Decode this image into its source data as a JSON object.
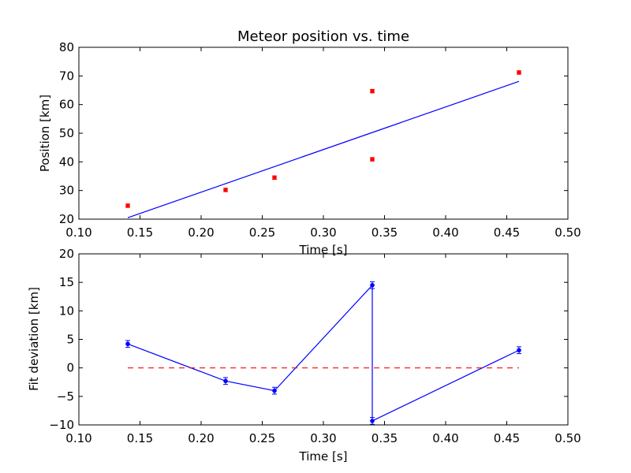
{
  "colors": {
    "data_points": "#ff0000",
    "fit_line": "#0000ff",
    "residual_line": "#0000ff",
    "zero_line": "#ff0000",
    "axes": "#000000",
    "background": "#ffffff"
  },
  "chart_data": [
    {
      "type": "scatter",
      "title": "Meteor position vs. time",
      "xlabel": "Time [s]",
      "ylabel": "Position [km]",
      "xlim": [
        0.1,
        0.5
      ],
      "ylim": [
        20,
        80
      ],
      "xticks": [
        "0.10",
        "0.15",
        "0.20",
        "0.25",
        "0.30",
        "0.35",
        "0.40",
        "0.45",
        "0.50"
      ],
      "yticks": [
        "20",
        "30",
        "40",
        "50",
        "60",
        "70",
        "80"
      ],
      "grid": false,
      "series": [
        {
          "kind": "errorbar-points",
          "color": "red",
          "x": [
            0.14,
            0.22,
            0.26,
            0.34,
            0.34,
            0.46
          ],
          "y": [
            24.7,
            30.2,
            34.5,
            64.7,
            40.9,
            71.2
          ],
          "yerr": [
            0.6,
            0.6,
            0.6,
            0.6,
            0.6,
            0.6
          ]
        },
        {
          "kind": "fit-line",
          "color": "blue",
          "x": [
            0.14,
            0.46
          ],
          "y": [
            20.5,
            68.1
          ]
        }
      ]
    },
    {
      "type": "line",
      "title": "",
      "xlabel": "Time [s]",
      "ylabel": "Fit deviation [km]",
      "xlim": [
        0.1,
        0.5
      ],
      "ylim": [
        -10,
        20
      ],
      "xticks": [
        "0.10",
        "0.15",
        "0.20",
        "0.25",
        "0.30",
        "0.35",
        "0.40",
        "0.45",
        "0.50"
      ],
      "yticks": [
        "−10",
        "−5",
        "0",
        "5",
        "10",
        "15",
        "20"
      ],
      "grid": false,
      "series": [
        {
          "kind": "errorbar-line",
          "color": "blue",
          "x": [
            0.14,
            0.22,
            0.26,
            0.34,
            0.34,
            0.46
          ],
          "y": [
            4.2,
            -2.3,
            -4.0,
            14.5,
            -9.3,
            3.1
          ],
          "yerr": [
            0.6,
            0.6,
            0.6,
            0.6,
            0.6,
            0.6
          ]
        },
        {
          "kind": "zero-line",
          "color": "red",
          "style": "dashed",
          "x": [
            0.14,
            0.46
          ],
          "y": [
            0,
            0
          ]
        }
      ]
    }
  ]
}
